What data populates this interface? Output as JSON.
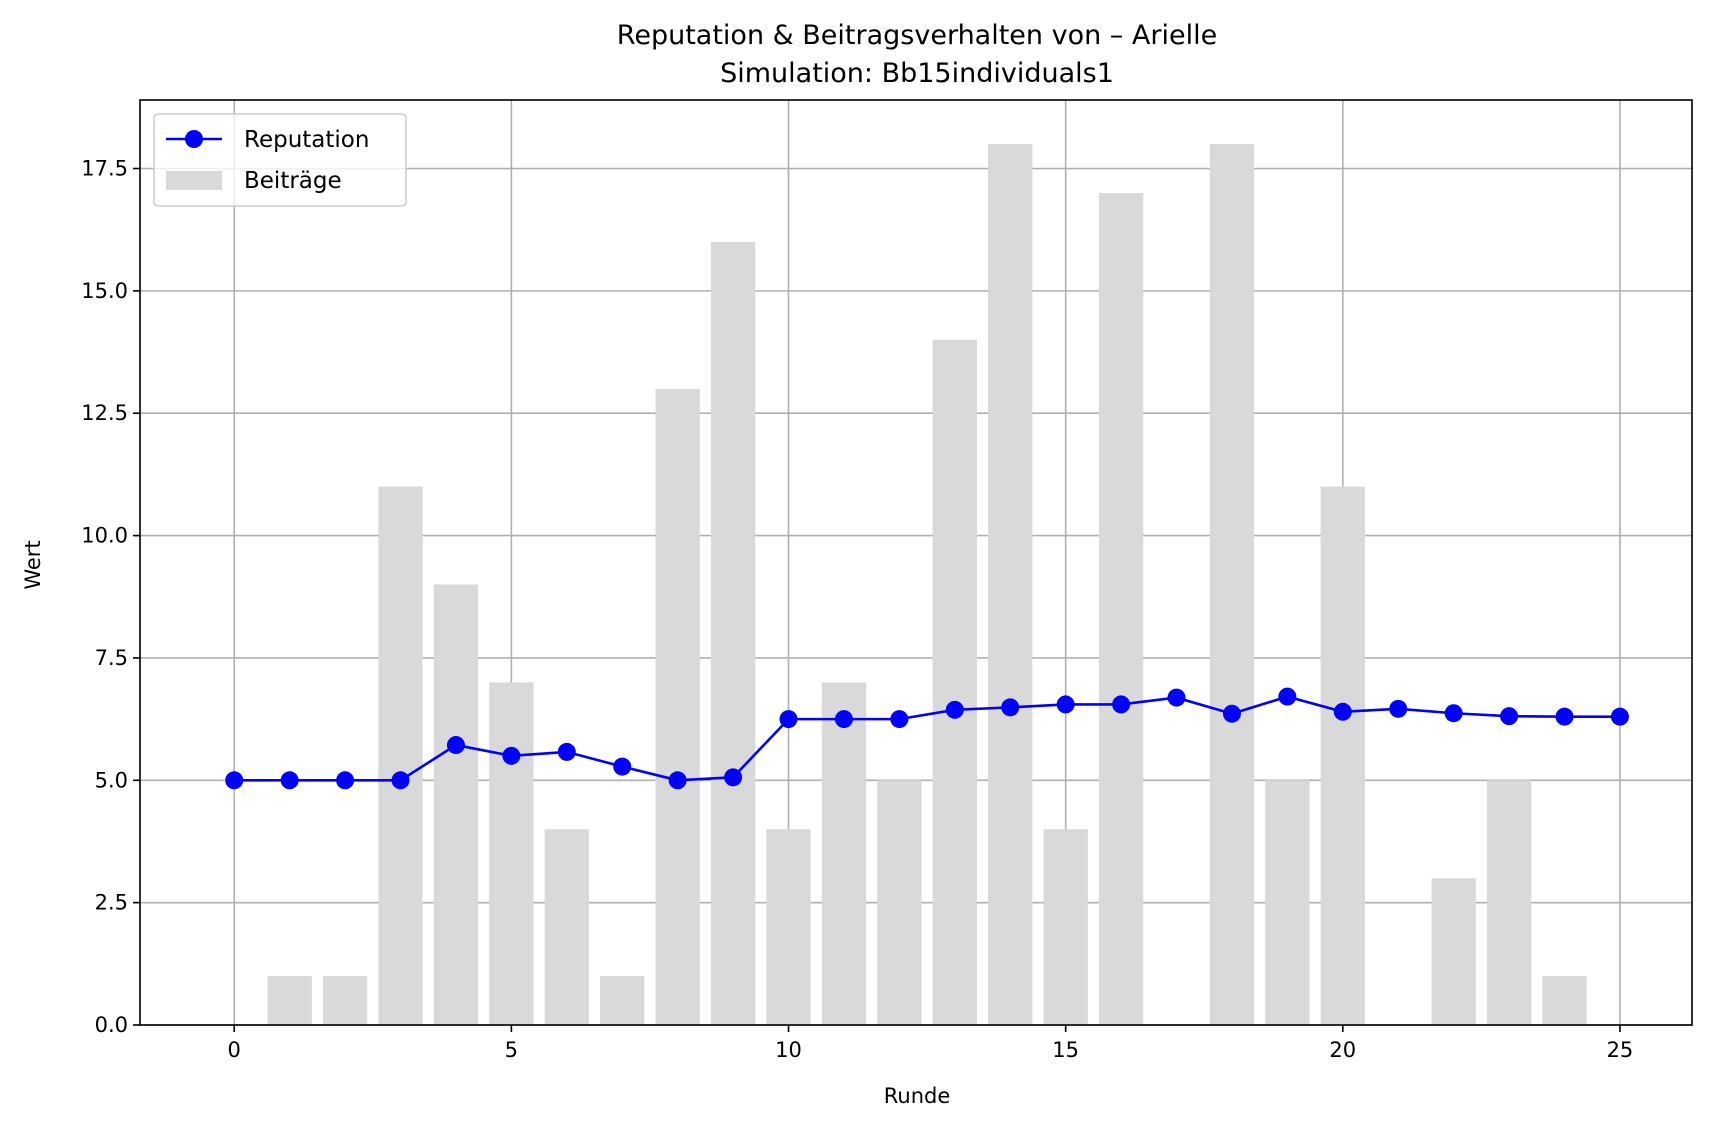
{
  "chart_data": {
    "type": "bar+line",
    "title": "Reputation & Beitragsverhalten von – Arielle",
    "subtitle": "Simulation: Bb15individuals1",
    "xlabel": "Runde",
    "ylabel": "Wert",
    "xlim": [
      -1.7,
      26.3
    ],
    "ylim": [
      0,
      18.9
    ],
    "x_ticks": [
      0,
      5,
      10,
      15,
      20,
      25
    ],
    "x_tick_labels": [
      "0",
      "5",
      "10",
      "15",
      "20",
      "25"
    ],
    "y_ticks": [
      0,
      2.5,
      5,
      7.5,
      10,
      12.5,
      15,
      17.5
    ],
    "y_tick_labels": [
      "0.0",
      "2.5",
      "5.0",
      "7.5",
      "10.0",
      "12.5",
      "15.0",
      "17.5"
    ],
    "grid": true,
    "legend_position": "top-left",
    "x": [
      0,
      1,
      2,
      3,
      4,
      5,
      6,
      7,
      8,
      9,
      10,
      11,
      12,
      13,
      14,
      15,
      16,
      17,
      18,
      19,
      20,
      21,
      22,
      23,
      24,
      25
    ],
    "series": [
      {
        "name": "Reputation",
        "type": "line",
        "marker": "circle",
        "color": "#0000ff",
        "values": [
          5.0,
          5.0,
          5.0,
          5.0,
          5.72,
          5.5,
          5.58,
          5.28,
          5.0,
          5.06,
          6.25,
          6.25,
          6.25,
          6.44,
          6.49,
          6.55,
          6.55,
          6.69,
          6.36,
          6.71,
          6.4,
          6.46,
          6.37,
          6.31,
          6.3,
          6.3
        ]
      },
      {
        "name": "Beiträge",
        "type": "bar",
        "color": "#d9d9d9",
        "values": [
          0,
          1,
          1,
          11,
          9,
          7,
          4,
          1,
          13,
          16,
          4,
          7,
          5,
          14,
          18,
          4,
          17,
          0,
          18,
          5,
          11,
          0,
          3,
          5,
          1,
          0
        ]
      }
    ]
  }
}
